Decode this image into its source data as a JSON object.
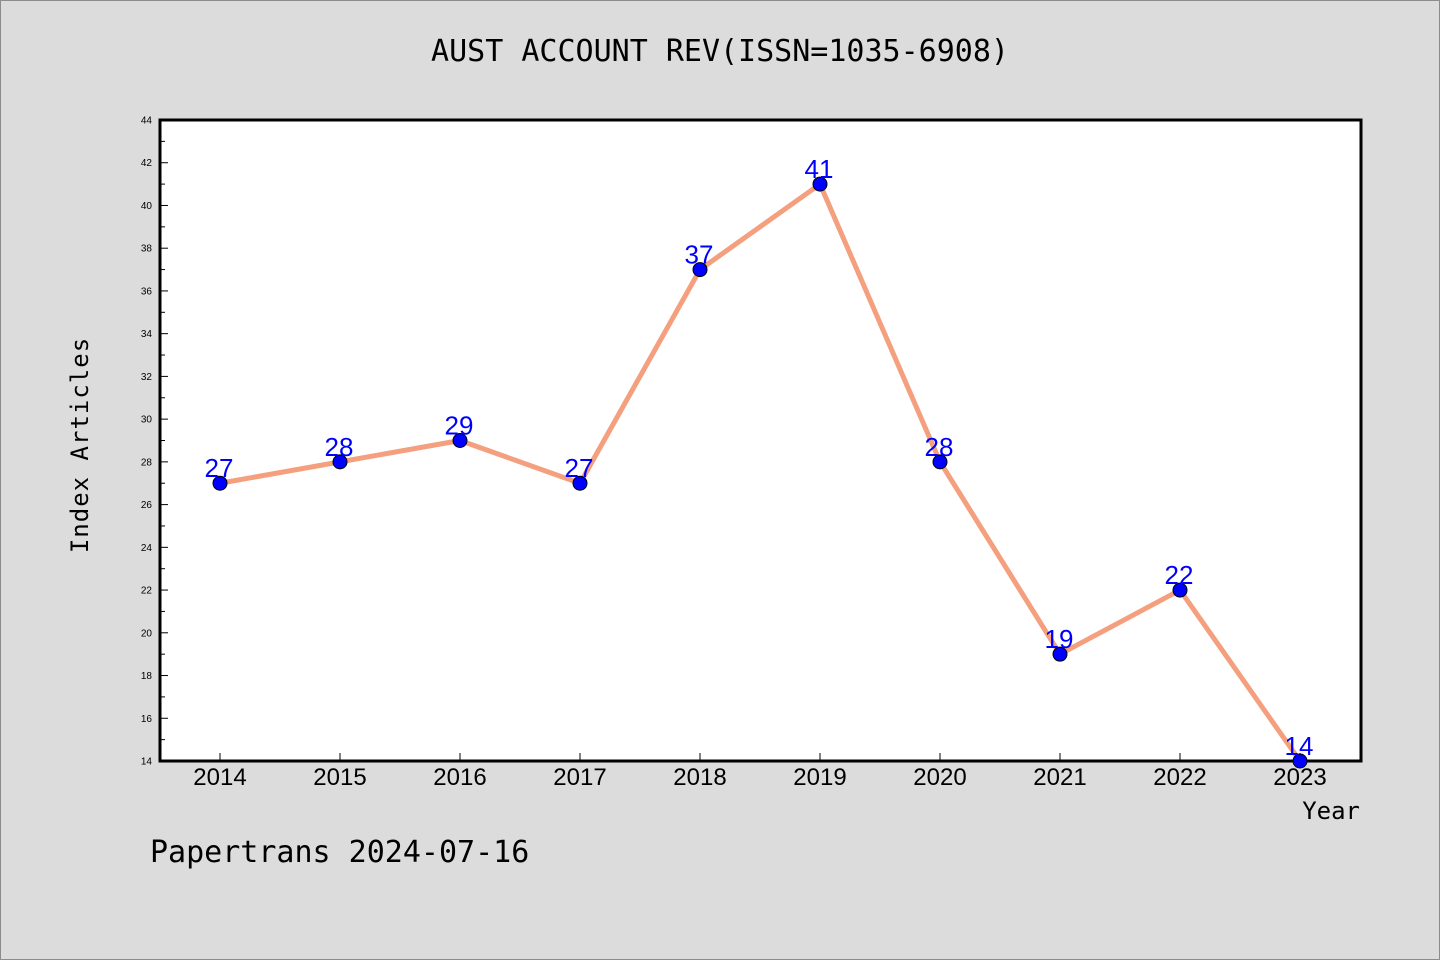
{
  "chart_data": {
    "type": "line",
    "title": "AUST ACCOUNT REV(ISSN=1035-6908)",
    "xlabel": "Year",
    "ylabel": "Index Articles",
    "categories": [
      "2014",
      "2015",
      "2016",
      "2017",
      "2018",
      "2019",
      "2020",
      "2021",
      "2022",
      "2023"
    ],
    "series": [
      {
        "values": [
          27,
          28,
          29,
          27,
          37,
          41,
          28,
          19,
          22,
          14
        ]
      }
    ],
    "data_labels": [
      "27",
      "28",
      "29",
      "27",
      "37",
      "41",
      "28",
      "19",
      "22",
      "14"
    ],
    "ylim": [
      14,
      44
    ],
    "yticks": [
      "14",
      "16",
      "18",
      "20",
      "22",
      "24",
      "26",
      "28",
      "30",
      "32",
      "34",
      "36",
      "38",
      "40",
      "42",
      "44"
    ],
    "grid": false,
    "line_color": "#f4a07f",
    "marker_color": "#0000ff",
    "label_color": "#0000ff"
  },
  "footer": "Papertrans 2024-07-16"
}
